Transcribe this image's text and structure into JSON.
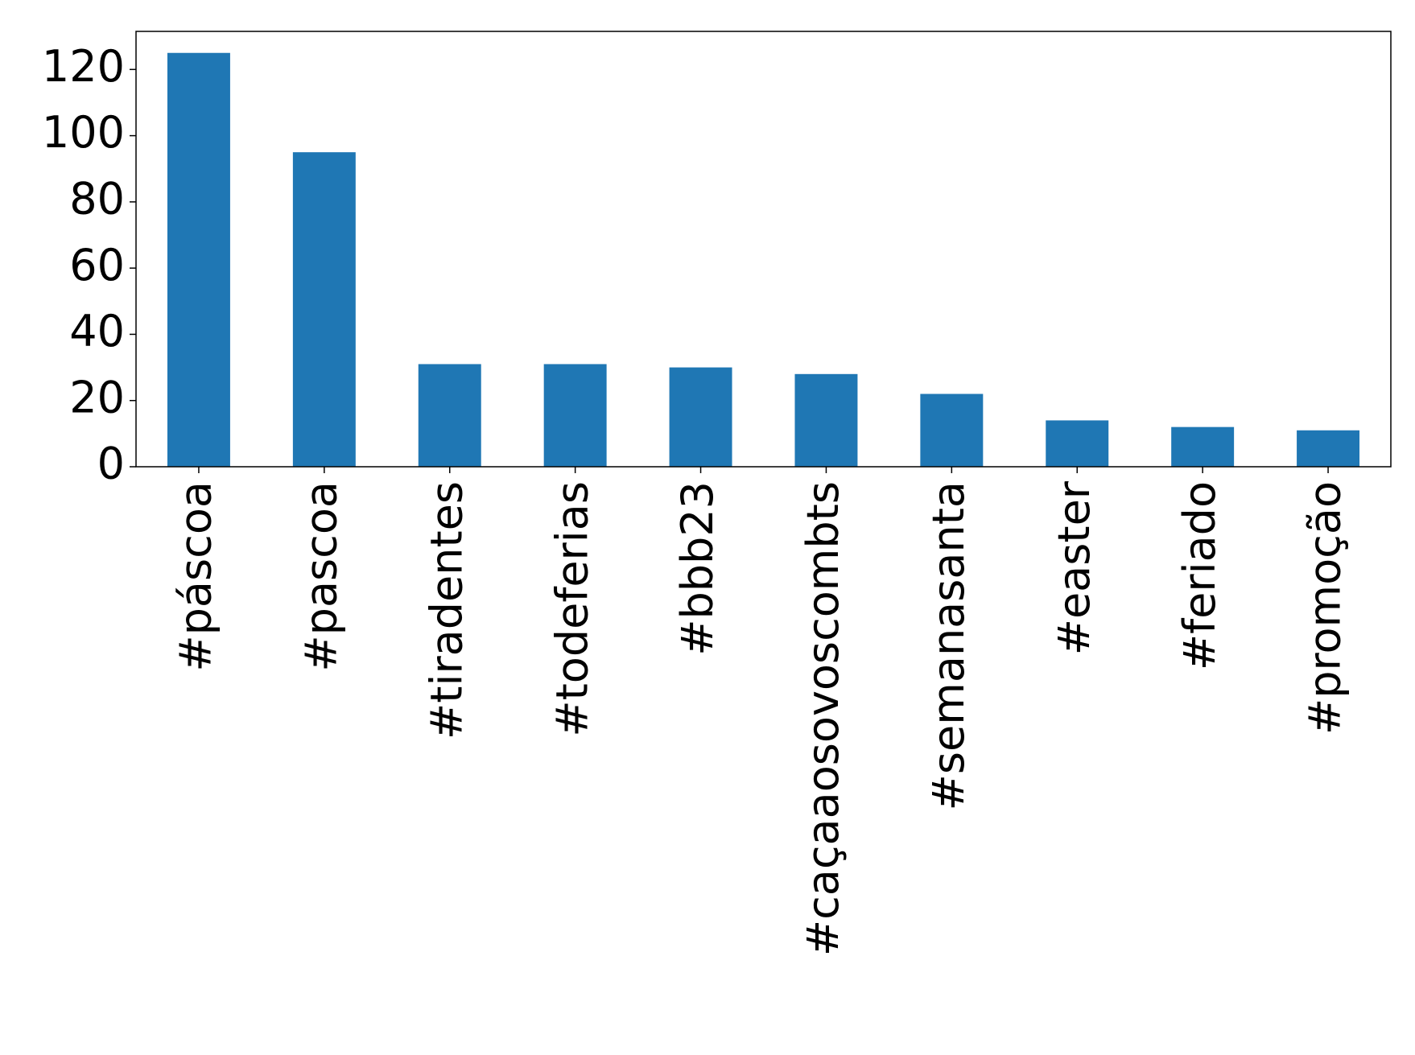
{
  "chart_data": {
    "type": "bar",
    "categories": [
      "#páscoa",
      "#pascoa",
      "#tiradentes",
      "#todeferias",
      "#bbb23",
      "#caçaaosovoscombts",
      "#semanasanta",
      "#easter",
      "#feriado",
      "#promoção"
    ],
    "values": [
      125,
      95,
      31,
      31,
      30,
      28,
      22,
      14,
      12,
      11
    ],
    "color": "#1f77b4",
    "ylim": [
      0,
      131.5
    ],
    "yticks": [
      0,
      20,
      40,
      60,
      80,
      100,
      120
    ],
    "grid": false
  }
}
